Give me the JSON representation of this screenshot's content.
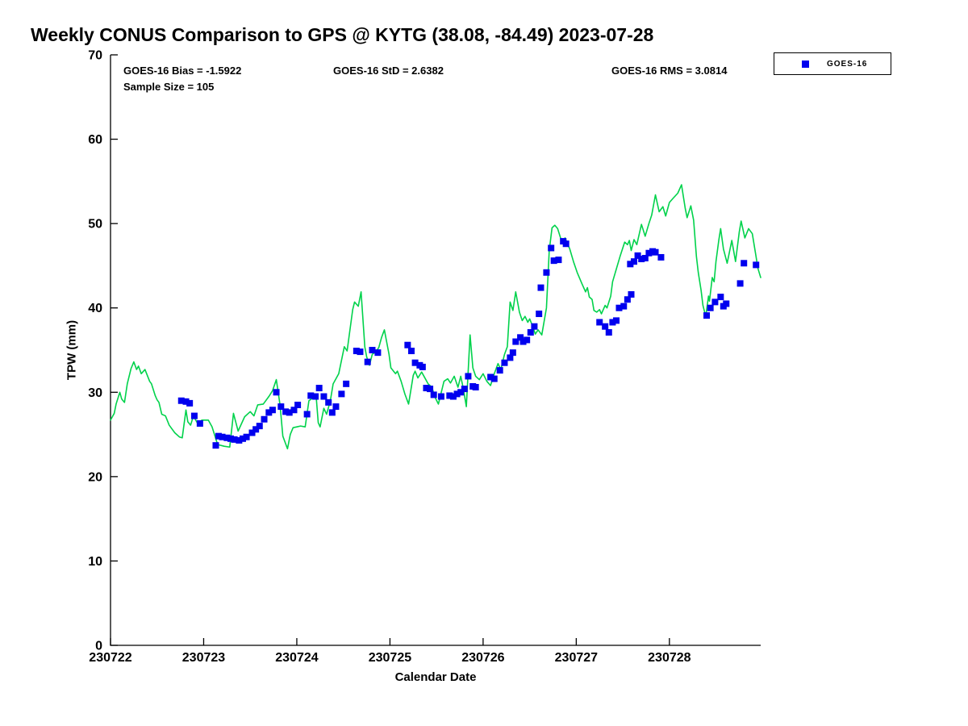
{
  "title": "Weekly CONUS Comparison to GPS @ KYTG (38.08, -84.49) 2023-07-28",
  "stats": {
    "bias": "GOES-16 Bias = -1.5922",
    "std": "GOES-16 StD = 2.6382",
    "rms": "GOES-16 RMS = 3.0814",
    "sample": "Sample Size = 105"
  },
  "legend": {
    "entries": [
      {
        "label": "GOES-16",
        "marker": "square",
        "color": "#0000ee"
      }
    ]
  },
  "colors": {
    "background": "#ffffff",
    "axis": "#000000",
    "gps_line": "#00d24b",
    "goes_marker": "#0000ee"
  },
  "chart_data": {
    "type": "line+scatter",
    "title": "Weekly CONUS Comparison to GPS @ KYTG (38.08, -84.49) 2023-07-28",
    "xlabel": "Calendar Date",
    "ylabel": "TPW (mm)",
    "ylim": [
      0,
      70
    ],
    "xlim_days": [
      0,
      6.98
    ],
    "grid": false,
    "legend_position": "top-right-outside",
    "y_ticks": [
      0,
      10,
      20,
      30,
      40,
      50,
      60,
      70
    ],
    "x_ticks": [
      "230722",
      "230723",
      "230724",
      "230725",
      "230726",
      "230727",
      "230728"
    ],
    "x_unit": "days since 230722 00:00 UTC",
    "series": [
      {
        "name": "GPS",
        "type": "line",
        "color": "#00d24b",
        "points": [
          [
            0,
            26.7
          ],
          [
            0.04,
            27.5
          ],
          [
            0.06,
            28.6
          ],
          [
            0.1,
            30.0
          ],
          [
            0.12,
            29.2
          ],
          [
            0.15,
            28.8
          ],
          [
            0.18,
            31.0
          ],
          [
            0.22,
            32.8
          ],
          [
            0.25,
            33.6
          ],
          [
            0.28,
            32.7
          ],
          [
            0.3,
            33.1
          ],
          [
            0.33,
            32.2
          ],
          [
            0.37,
            32.7
          ],
          [
            0.42,
            31.3
          ],
          [
            0.44,
            31.0
          ],
          [
            0.48,
            29.6
          ],
          [
            0.5,
            29.1
          ],
          [
            0.52,
            28.8
          ],
          [
            0.55,
            27.4
          ],
          [
            0.59,
            27.2
          ],
          [
            0.63,
            26.1
          ],
          [
            0.69,
            25.2
          ],
          [
            0.74,
            24.7
          ],
          [
            0.77,
            24.6
          ],
          [
            0.81,
            27.9
          ],
          [
            0.83,
            26.5
          ],
          [
            0.86,
            26.1
          ],
          [
            0.89,
            27.2
          ],
          [
            0.94,
            26.2
          ],
          [
            0.98,
            26.7
          ],
          [
            1.05,
            26.7
          ],
          [
            1.09,
            25.9
          ],
          [
            1.15,
            23.8
          ],
          [
            1.22,
            23.6
          ],
          [
            1.28,
            23.5
          ],
          [
            1.32,
            27.5
          ],
          [
            1.37,
            25.4
          ],
          [
            1.44,
            27.1
          ],
          [
            1.5,
            27.7
          ],
          [
            1.54,
            27.2
          ],
          [
            1.58,
            28.5
          ],
          [
            1.64,
            28.6
          ],
          [
            1.7,
            29.5
          ],
          [
            1.74,
            30.2
          ],
          [
            1.78,
            31.5
          ],
          [
            1.82,
            28.5
          ],
          [
            1.85,
            24.8
          ],
          [
            1.9,
            23.3
          ],
          [
            1.93,
            25.0
          ],
          [
            1.96,
            25.8
          ],
          [
            2.0,
            25.9
          ],
          [
            2.04,
            26.0
          ],
          [
            2.09,
            25.9
          ],
          [
            2.13,
            29.0
          ],
          [
            2.17,
            29.3
          ],
          [
            2.21,
            29.2
          ],
          [
            2.23,
            26.4
          ],
          [
            2.25,
            25.9
          ],
          [
            2.29,
            28.1
          ],
          [
            2.32,
            27.4
          ],
          [
            2.36,
            29.0
          ],
          [
            2.39,
            31.0
          ],
          [
            2.45,
            32.2
          ],
          [
            2.51,
            35.4
          ],
          [
            2.54,
            34.9
          ],
          [
            2.6,
            39.8
          ],
          [
            2.62,
            40.7
          ],
          [
            2.66,
            40.2
          ],
          [
            2.69,
            41.9
          ],
          [
            2.73,
            35.4
          ],
          [
            2.75,
            34.2
          ],
          [
            2.78,
            33.2
          ],
          [
            2.81,
            34.5
          ],
          [
            2.85,
            34.8
          ],
          [
            2.88,
            35.3
          ],
          [
            2.91,
            36.5
          ],
          [
            2.94,
            37.4
          ],
          [
            2.99,
            34.5
          ],
          [
            3.01,
            32.9
          ],
          [
            3.06,
            32.2
          ],
          [
            3.08,
            32.5
          ],
          [
            3.12,
            31.3
          ],
          [
            3.16,
            29.8
          ],
          [
            3.2,
            28.6
          ],
          [
            3.25,
            32.0
          ],
          [
            3.27,
            32.5
          ],
          [
            3.3,
            31.7
          ],
          [
            3.34,
            32.4
          ],
          [
            3.38,
            31.6
          ],
          [
            3.41,
            31.0
          ],
          [
            3.45,
            30.6
          ],
          [
            3.48,
            29.5
          ],
          [
            3.52,
            28.6
          ],
          [
            3.58,
            31.3
          ],
          [
            3.62,
            31.6
          ],
          [
            3.65,
            31.1
          ],
          [
            3.69,
            31.9
          ],
          [
            3.73,
            30.6
          ],
          [
            3.76,
            31.9
          ],
          [
            3.79,
            30.3
          ],
          [
            3.82,
            28.3
          ],
          [
            3.86,
            36.8
          ],
          [
            3.89,
            32.9
          ],
          [
            3.92,
            31.9
          ],
          [
            3.96,
            31.5
          ],
          [
            4.0,
            32.2
          ],
          [
            4.04,
            31.3
          ],
          [
            4.08,
            30.8
          ],
          [
            4.12,
            32.2
          ],
          [
            4.16,
            33.4
          ],
          [
            4.19,
            32.7
          ],
          [
            4.23,
            34.5
          ],
          [
            4.26,
            35.4
          ],
          [
            4.29,
            40.7
          ],
          [
            4.32,
            39.7
          ],
          [
            4.35,
            41.9
          ],
          [
            4.39,
            39.5
          ],
          [
            4.42,
            38.5
          ],
          [
            4.45,
            39.0
          ],
          [
            4.48,
            38.3
          ],
          [
            4.5,
            38.7
          ],
          [
            4.54,
            37.6
          ],
          [
            4.56,
            36.9
          ],
          [
            4.59,
            37.4
          ],
          [
            4.63,
            36.8
          ],
          [
            4.68,
            40.0
          ],
          [
            4.71,
            46.8
          ],
          [
            4.74,
            49.5
          ],
          [
            4.77,
            49.8
          ],
          [
            4.8,
            49.4
          ],
          [
            4.84,
            48.0
          ],
          [
            4.86,
            47.6
          ],
          [
            4.88,
            48.3
          ],
          [
            4.93,
            47.0
          ],
          [
            4.97,
            45.5
          ],
          [
            5.01,
            44.2
          ],
          [
            5.06,
            42.9
          ],
          [
            5.1,
            41.9
          ],
          [
            5.12,
            42.4
          ],
          [
            5.14,
            41.3
          ],
          [
            5.17,
            41.0
          ],
          [
            5.19,
            39.7
          ],
          [
            5.22,
            39.5
          ],
          [
            5.25,
            39.8
          ],
          [
            5.27,
            39.3
          ],
          [
            5.31,
            40.3
          ],
          [
            5.33,
            40.0
          ],
          [
            5.37,
            41.4
          ],
          [
            5.39,
            43.1
          ],
          [
            5.43,
            44.6
          ],
          [
            5.47,
            46.1
          ],
          [
            5.52,
            47.8
          ],
          [
            5.55,
            47.5
          ],
          [
            5.57,
            48.0
          ],
          [
            5.59,
            46.8
          ],
          [
            5.62,
            48.1
          ],
          [
            5.65,
            47.5
          ],
          [
            5.7,
            49.9
          ],
          [
            5.74,
            48.5
          ],
          [
            5.78,
            50.0
          ],
          [
            5.81,
            51.0
          ],
          [
            5.85,
            53.4
          ],
          [
            5.89,
            51.4
          ],
          [
            5.93,
            52.0
          ],
          [
            5.96,
            50.9
          ],
          [
            6.0,
            52.5
          ],
          [
            6.04,
            53.0
          ],
          [
            6.09,
            53.6
          ],
          [
            6.13,
            54.6
          ],
          [
            6.17,
            51.8
          ],
          [
            6.19,
            50.7
          ],
          [
            6.23,
            52.1
          ],
          [
            6.26,
            50.4
          ],
          [
            6.29,
            46.1
          ],
          [
            6.31,
            44.2
          ],
          [
            6.34,
            42.1
          ],
          [
            6.36,
            40.3
          ],
          [
            6.39,
            39.0
          ],
          [
            6.42,
            41.4
          ],
          [
            6.43,
            40.8
          ],
          [
            6.46,
            43.6
          ],
          [
            6.48,
            43.1
          ],
          [
            6.5,
            45.5
          ],
          [
            6.53,
            48.0
          ],
          [
            6.55,
            49.4
          ],
          [
            6.58,
            47.0
          ],
          [
            6.62,
            45.3
          ],
          [
            6.67,
            48.0
          ],
          [
            6.71,
            45.5
          ],
          [
            6.75,
            49.0
          ],
          [
            6.77,
            50.3
          ],
          [
            6.81,
            48.3
          ],
          [
            6.85,
            49.4
          ],
          [
            6.89,
            48.8
          ],
          [
            6.93,
            46.1
          ],
          [
            6.95,
            44.7
          ],
          [
            6.98,
            43.6
          ]
        ]
      },
      {
        "name": "GOES-16",
        "type": "scatter",
        "color": "#0000ee",
        "marker_size": 8,
        "points": [
          [
            0.76,
            29.0
          ],
          [
            0.81,
            28.9
          ],
          [
            0.85,
            28.7
          ],
          [
            0.9,
            27.2
          ],
          [
            0.96,
            26.3
          ],
          [
            1.13,
            23.7
          ],
          [
            1.16,
            24.8
          ],
          [
            1.2,
            24.7
          ],
          [
            1.25,
            24.6
          ],
          [
            1.29,
            24.5
          ],
          [
            1.33,
            24.4
          ],
          [
            1.38,
            24.3
          ],
          [
            1.42,
            24.5
          ],
          [
            1.46,
            24.7
          ],
          [
            1.52,
            25.2
          ],
          [
            1.56,
            25.6
          ],
          [
            1.6,
            26.0
          ],
          [
            1.65,
            26.8
          ],
          [
            1.7,
            27.6
          ],
          [
            1.74,
            27.9
          ],
          [
            1.78,
            30.0
          ],
          [
            1.83,
            28.3
          ],
          [
            1.88,
            27.7
          ],
          [
            1.92,
            27.6
          ],
          [
            1.97,
            27.9
          ],
          [
            2.01,
            28.5
          ],
          [
            2.11,
            27.4
          ],
          [
            2.15,
            29.6
          ],
          [
            2.2,
            29.5
          ],
          [
            2.24,
            30.5
          ],
          [
            2.29,
            29.5
          ],
          [
            2.34,
            28.8
          ],
          [
            2.38,
            27.6
          ],
          [
            2.42,
            28.3
          ],
          [
            2.48,
            29.8
          ],
          [
            2.53,
            31.0
          ],
          [
            2.64,
            34.9
          ],
          [
            2.68,
            34.8
          ],
          [
            2.76,
            33.6
          ],
          [
            2.81,
            35.0
          ],
          [
            2.87,
            34.7
          ],
          [
            3.19,
            35.6
          ],
          [
            3.23,
            34.9
          ],
          [
            3.27,
            33.5
          ],
          [
            3.32,
            33.2
          ],
          [
            3.35,
            33.0
          ],
          [
            3.39,
            30.5
          ],
          [
            3.43,
            30.4
          ],
          [
            3.47,
            29.7
          ],
          [
            3.55,
            29.5
          ],
          [
            3.64,
            29.6
          ],
          [
            3.68,
            29.5
          ],
          [
            3.72,
            29.8
          ],
          [
            3.76,
            30.0
          ],
          [
            3.8,
            30.4
          ],
          [
            3.84,
            31.9
          ],
          [
            3.89,
            30.7
          ],
          [
            3.92,
            30.6
          ],
          [
            4.08,
            31.8
          ],
          [
            4.12,
            31.6
          ],
          [
            4.18,
            32.6
          ],
          [
            4.23,
            33.5
          ],
          [
            4.29,
            34.1
          ],
          [
            4.32,
            34.7
          ],
          [
            4.35,
            36.0
          ],
          [
            4.4,
            36.5
          ],
          [
            4.43,
            36.0
          ],
          [
            4.47,
            36.2
          ],
          [
            4.51,
            37.1
          ],
          [
            4.55,
            37.8
          ],
          [
            4.6,
            39.3
          ],
          [
            4.62,
            42.4
          ],
          [
            4.68,
            44.2
          ],
          [
            4.73,
            47.1
          ],
          [
            4.76,
            45.6
          ],
          [
            4.81,
            45.7
          ],
          [
            4.86,
            47.9
          ],
          [
            4.89,
            47.6
          ],
          [
            5.25,
            38.3
          ],
          [
            5.31,
            37.8
          ],
          [
            5.35,
            37.1
          ],
          [
            5.39,
            38.3
          ],
          [
            5.43,
            38.5
          ],
          [
            5.46,
            40.0
          ],
          [
            5.51,
            40.2
          ],
          [
            5.55,
            41.0
          ],
          [
            5.59,
            41.6
          ],
          [
            5.58,
            45.2
          ],
          [
            5.62,
            45.5
          ],
          [
            5.66,
            46.2
          ],
          [
            5.7,
            45.8
          ],
          [
            5.74,
            45.9
          ],
          [
            5.78,
            46.5
          ],
          [
            5.82,
            46.7
          ],
          [
            5.85,
            46.6
          ],
          [
            5.91,
            46.0
          ],
          [
            6.4,
            39.1
          ],
          [
            6.44,
            40.0
          ],
          [
            6.49,
            40.7
          ],
          [
            6.55,
            41.3
          ],
          [
            6.58,
            40.2
          ],
          [
            6.61,
            40.5
          ],
          [
            6.76,
            42.9
          ],
          [
            6.8,
            45.3
          ],
          [
            6.93,
            45.1
          ]
        ]
      }
    ]
  }
}
